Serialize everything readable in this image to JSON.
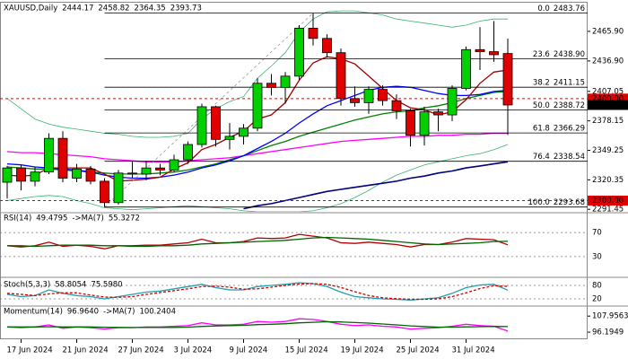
{
  "chart_data": [
    {
      "type": "candlestick",
      "title": "XAUUSD,Daily",
      "categories": [
        null,
        "17 Jun 2024",
        null,
        null,
        null,
        "21 Jun 2024",
        null,
        null,
        null,
        "27 Jun 2024",
        null,
        null,
        null,
        "3 Jul 2024",
        null,
        null,
        null,
        "9 Jul 2024",
        null,
        null,
        null,
        "15 Jul 2024",
        null,
        null,
        null,
        "19 Jul 2024",
        null,
        null,
        null,
        "25 Jul 2024",
        null,
        null,
        null,
        "31 Jul 2024",
        null,
        null,
        null
      ],
      "open": [
        2318,
        2332,
        2319,
        2328,
        2361,
        2322,
        2331,
        2319,
        2298,
        2327,
        2326,
        2332,
        2330,
        2340,
        2355,
        2392,
        2360,
        2363,
        2371,
        2415,
        2411,
        2422,
        2469,
        2459,
        2445,
        2400,
        2396,
        2409,
        2398,
        2388,
        2364,
        2387,
        2384,
        2410,
        2448,
        2446,
        2444.17
      ],
      "high": [
        2334,
        2335,
        2333,
        2366,
        2368,
        2336,
        2334,
        2322,
        2330,
        2338,
        2339,
        2336,
        2345,
        2358,
        2395,
        2393,
        2376,
        2375,
        2420,
        2424,
        2426,
        2472,
        2483.76,
        2463,
        2449,
        2412,
        2412,
        2413,
        2404,
        2390,
        2392,
        2390,
        2413,
        2451,
        2470,
        2476,
        2458.82
      ],
      "low": [
        2302,
        2310,
        2314,
        2326,
        2318,
        2318,
        2316,
        2293.68,
        2296,
        2322,
        2320,
        2325,
        2328,
        2336,
        2352,
        2353,
        2350,
        2355,
        2368,
        2403,
        2395,
        2418,
        2452,
        2440,
        2393,
        2392,
        2385,
        2393,
        2380,
        2353,
        2354,
        2368,
        2378,
        2408,
        2428,
        2436,
        2364.35
      ],
      "close": [
        2332,
        2319,
        2328,
        2361,
        2322,
        2331,
        2319,
        2298,
        2327,
        2326,
        2332,
        2330,
        2340,
        2355,
        2392,
        2360,
        2363,
        2371,
        2415,
        2411,
        2422,
        2469,
        2459,
        2445,
        2400,
        2396,
        2409,
        2398,
        2388,
        2364,
        2387,
        2384,
        2410,
        2448,
        2446,
        2443,
        2393.73
      ],
      "up_color": "#00d000",
      "down_color": "#e00000",
      "ylim": [
        2289,
        2494
      ],
      "yticks": [
        {
          "value": 2465.9,
          "label": "2465.90"
        },
        {
          "value": 2436.9,
          "label": "2436.90"
        },
        {
          "value": 2407.05,
          "label": "2407.05"
        },
        {
          "value": 2378.15,
          "label": "2378.15"
        },
        {
          "value": 2349.25,
          "label": "2349.25"
        },
        {
          "value": 2320.35,
          "label": "2320.35"
        },
        {
          "value": 2291.45,
          "label": "2291.45"
        }
      ],
      "series": [
        {
          "color": "#3cb371",
          "values": [
            2400,
            2390,
            2380,
            2375,
            2372,
            2370,
            2368,
            2366,
            2365,
            2363,
            2362,
            2362,
            2363,
            2366,
            2380,
            2390,
            2397,
            2402,
            2420,
            2432,
            2445,
            2465,
            2478,
            2485,
            2486,
            2486,
            2484,
            2482,
            2478,
            2476,
            2474,
            2472,
            2470,
            2472,
            2476,
            2478,
            2478
          ]
        },
        {
          "color": "#3cb371",
          "values": [
            2300,
            2302,
            2304,
            2305,
            2304,
            2300,
            2297,
            2293,
            2292,
            2291,
            2292,
            2293,
            2294,
            2295,
            2294,
            2293,
            2292,
            2290,
            2289,
            2289,
            2289,
            2289,
            2290,
            2293,
            2297,
            2303,
            2310,
            2318,
            2325,
            2330,
            2335,
            2338,
            2341,
            2344,
            2346,
            2350,
            2355
          ]
        },
        {
          "color": "#ff00ff",
          "values": [
            2348,
            2347,
            2347,
            2346,
            2345,
            2344,
            2343,
            2341,
            2340,
            2339,
            2338,
            2338,
            2338,
            2339,
            2340,
            2341,
            2342,
            2344,
            2346,
            2348,
            2350,
            2352,
            2354,
            2356,
            2358,
            2359,
            2360,
            2361,
            2362,
            2363,
            2363,
            2364,
            2364,
            2365,
            2365,
            2366,
            2366
          ]
        },
        {
          "color": "#000080",
          "values": [
            null,
            null,
            null,
            null,
            null,
            null,
            null,
            null,
            null,
            null,
            null,
            null,
            null,
            null,
            null,
            null,
            null,
            2292,
            2295,
            2297,
            2300,
            2303,
            2306,
            2309,
            2311,
            2313,
            2315,
            2317,
            2319,
            2322,
            2324,
            2327,
            2329,
            2332,
            2334,
            2336,
            2338
          ]
        },
        {
          "color": "#008000",
          "values": [
            2333,
            2332,
            2331,
            2331,
            2330,
            2329,
            2328,
            2327,
            2326,
            2326,
            2326,
            2327,
            2328,
            2330,
            2333,
            2336,
            2340,
            2344,
            2349,
            2354,
            2358,
            2363,
            2367,
            2371,
            2375,
            2379,
            2382,
            2385,
            2387,
            2388,
            2391,
            2393,
            2396,
            2400,
            2403,
            2406,
            2407
          ]
        },
        {
          "color": "#0000ff",
          "values": [
            2336,
            2335,
            2333,
            2332,
            2331,
            2330,
            2328,
            2325,
            2323,
            2322,
            2322,
            2323,
            2325,
            2328,
            2332,
            2335,
            2339,
            2344,
            2351,
            2358,
            2366,
            2376,
            2385,
            2393,
            2398,
            2403,
            2408,
            2411,
            2412,
            2411,
            2408,
            2405,
            2403,
            2403,
            2404,
            2407,
            2408
          ]
        },
        {
          "color": "#a00000",
          "values": [
            2325,
            2324,
            2325,
            2332,
            2332,
            2332,
            2332,
            2326,
            2319,
            2320,
            2321,
            2323,
            2331,
            2337,
            2350,
            2355,
            2362,
            2368,
            2380,
            2384,
            2396,
            2418,
            2435,
            2441,
            2439,
            2434,
            2422,
            2410,
            2398,
            2391,
            2389,
            2384,
            2387,
            2399,
            2415,
            2426,
            2428
          ]
        }
      ],
      "fib_levels": [
        {
          "ratio": "0.0",
          "price": 2483.76
        },
        {
          "ratio": "23.6",
          "price": 2438.9
        },
        {
          "ratio": "38.2",
          "price": 2411.15
        },
        {
          "ratio": "50.0",
          "price": 2388.72
        },
        {
          "ratio": "61.8",
          "price": 2366.29
        },
        {
          "ratio": "76.4",
          "price": 2338.54
        },
        {
          "ratio": "100.0",
          "price": 2293.68
        }
      ],
      "fib_price_labels": [
        "2483.76",
        "2438.90",
        "2411.15",
        "2388.72",
        "2366.29",
        "2338.54",
        "2293.68"
      ],
      "levels": [
        {
          "value": 2400,
          "label": "2400.00"
        },
        {
          "value": 2300,
          "label": "2300.00"
        }
      ],
      "level_color": "#e00000"
    },
    {
      "type": "indicator",
      "ylim": [
        0,
        100
      ],
      "yticks": [
        70,
        30
      ],
      "grid": true,
      "series": [
        {
          "name": "RSI(14)",
          "color": "#b00000",
          "values": [
            48,
            46,
            48,
            54,
            47,
            49,
            47,
            43,
            48,
            48,
            49,
            49,
            51,
            53,
            59,
            53,
            53,
            55,
            61,
            60,
            61,
            67,
            64,
            61,
            53,
            52,
            54,
            52,
            50,
            46,
            50,
            50,
            54,
            60,
            59,
            58,
            49.4795
          ]
        },
        {
          "name": "->MA(7)",
          "color": "#006400",
          "values": [
            48,
            48,
            47,
            48,
            49,
            49,
            49,
            48,
            48,
            47,
            47,
            48,
            48,
            49,
            51,
            52,
            53,
            54,
            55,
            56,
            57,
            59,
            61,
            62,
            61,
            60,
            59,
            57,
            55,
            53,
            51,
            50,
            51,
            52,
            53,
            55,
            55.3272
          ]
        }
      ]
    },
    {
      "type": "indicator",
      "ylim": [
        0,
        100
      ],
      "yticks": [
        80,
        20
      ],
      "grid": true,
      "series": [
        {
          "name": "Stoch(5,3,3)",
          "color": "#20a0b0",
          "values": [
            40,
            30,
            35,
            60,
            45,
            35,
            30,
            20,
            30,
            40,
            50,
            55,
            65,
            75,
            85,
            70,
            60,
            60,
            75,
            80,
            85,
            92,
            88,
            75,
            50,
            30,
            25,
            20,
            18,
            15,
            20,
            25,
            45,
            70,
            82,
            85,
            58.8054
          ]
        },
        {
          "color": "#d00000",
          "dashed": true,
          "values": [
            45,
            40,
            35,
            42,
            47,
            47,
            37,
            28,
            27,
            30,
            40,
            48,
            57,
            65,
            75,
            77,
            72,
            63,
            65,
            72,
            80,
            86,
            88,
            85,
            71,
            52,
            35,
            25,
            21,
            18,
            18,
            20,
            30,
            47,
            66,
            79,
            75.598
          ],
          "value_labels": [
            null,
            null,
            null,
            null,
            null,
            null,
            null,
            null,
            null,
            null,
            null,
            null,
            null,
            null,
            null,
            null,
            null,
            null,
            null,
            null,
            null,
            null,
            null,
            null,
            null,
            null,
            null,
            null,
            null,
            null,
            null,
            null,
            null,
            null,
            null,
            null,
            "75.5980"
          ]
        }
      ]
    },
    {
      "type": "indicator",
      "ylim": [
        91,
        114
      ],
      "yticks": [
        107.9563,
        96.1949
      ],
      "grid": false,
      "series": [
        {
          "name": "Momentum(14)",
          "color": "#ff00ff",
          "values": [
            100,
            99.5,
            100,
            101.5,
            99,
            100,
            99.5,
            98.5,
            99.5,
            99.5,
            100,
            100,
            100.5,
            101,
            103,
            101.5,
            101.5,
            102,
            104,
            103.5,
            104,
            106,
            105.5,
            104,
            102,
            101,
            101.5,
            100.5,
            100,
            98.5,
            99,
            99.5,
            100.5,
            102,
            101,
            100.5,
            96.964
          ],
          "value_labels": [
            null,
            null,
            null,
            null,
            null,
            null,
            null,
            null,
            null,
            null,
            null,
            null,
            null,
            null,
            null,
            null,
            null,
            null,
            null,
            null,
            null,
            null,
            null,
            null,
            null,
            null,
            null,
            null,
            null,
            null,
            null,
            null,
            null,
            null,
            null,
            null,
            "96.9640"
          ]
        },
        {
          "name": "->MA(7)",
          "color": "#006400",
          "values": [
            100,
            100,
            100,
            100.2,
            100,
            100,
            100,
            99.8,
            99.7,
            99.6,
            99.6,
            99.6,
            99.7,
            99.9,
            100.4,
            100.7,
            101,
            101.2,
            101.7,
            102,
            102.4,
            103,
            103.4,
            103.8,
            103.7,
            103.2,
            102.8,
            102.2,
            101.5,
            100.8,
            100.3,
            99.9,
            99.9,
            100.1,
            100.2,
            100.4,
            100.2404
          ]
        }
      ]
    }
  ]
}
